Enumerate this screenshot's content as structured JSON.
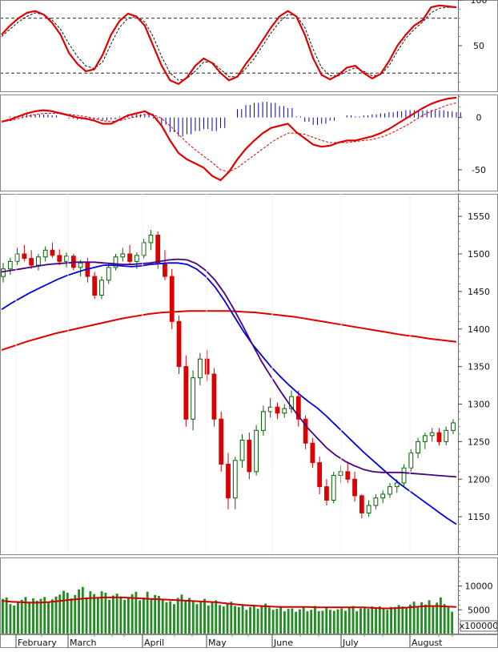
{
  "chart_data": [
    {
      "panel": "stochastic",
      "type": "line",
      "ylim": [
        0,
        100
      ],
      "yticks": [
        "100",
        "50"
      ],
      "ytick_values": [
        100,
        50
      ],
      "reference_lines": [
        80,
        20
      ],
      "series": [
        {
          "values": [
            62,
            72,
            80,
            86,
            88,
            84,
            75,
            62,
            42,
            30,
            22,
            24,
            40,
            62,
            77,
            85,
            82,
            72,
            50,
            28,
            12,
            8,
            15,
            28,
            36,
            31,
            20,
            12,
            16,
            30,
            42,
            56,
            70,
            82,
            88,
            82,
            62,
            36,
            18,
            13,
            18,
            26,
            28,
            20,
            14,
            19,
            33,
            50,
            62,
            72,
            78,
            92,
            94,
            93,
            92
          ],
          "color": "#e00000"
        },
        {
          "values": [
            60,
            68,
            76,
            82,
            86,
            84,
            78,
            68,
            52,
            38,
            28,
            25,
            32,
            52,
            70,
            80,
            82,
            76,
            60,
            38,
            20,
            12,
            14,
            22,
            32,
            32,
            24,
            16,
            16,
            25,
            36,
            50,
            64,
            76,
            84,
            83,
            70,
            46,
            26,
            17,
            17,
            22,
            26,
            22,
            17,
            18,
            28,
            44,
            58,
            68,
            76,
            86,
            91,
            92,
            92
          ],
          "color": "#111111"
        }
      ]
    },
    {
      "panel": "macd",
      "type": "line",
      "ylim": [
        -70,
        22
      ],
      "yticks": [
        "0",
        "-50"
      ],
      "ytick_values": [
        0,
        -50
      ],
      "series": [
        {
          "values": [
            -4,
            -2,
            1,
            4,
            6,
            7,
            6,
            4,
            2,
            0,
            -1,
            -3,
            -6,
            -6,
            -2,
            2,
            4,
            6,
            2,
            -8,
            -22,
            -34,
            -40,
            -44,
            -48,
            -56,
            -60,
            -52,
            -40,
            -30,
            -22,
            -15,
            -10,
            -8,
            -6,
            -14,
            -20,
            -26,
            -28,
            -27,
            -24,
            -22,
            -22,
            -20,
            -18,
            -15,
            -11,
            -6,
            -1,
            4,
            9,
            13,
            16,
            18,
            19
          ],
          "color": "#e00000"
        },
        {
          "values": [
            -4,
            -3,
            -1,
            1,
            3,
            4,
            4,
            4,
            3,
            2,
            1,
            -1,
            -3,
            -4,
            -3,
            -1,
            1,
            3,
            3,
            -1,
            -8,
            -16,
            -24,
            -31,
            -37,
            -43,
            -50,
            -52,
            -48,
            -42,
            -36,
            -30,
            -24,
            -19,
            -15,
            -15,
            -16,
            -19,
            -22,
            -24,
            -24,
            -24,
            -23,
            -22,
            -21,
            -19,
            -16,
            -12,
            -8,
            -3,
            2,
            6,
            9,
            12,
            14
          ],
          "color": "#e00000",
          "dash": "dashed"
        },
        {
          "type": "bar",
          "values": [
            0,
            1,
            2,
            3,
            3,
            3,
            2,
            0,
            -1,
            -2,
            -2,
            -2,
            -3,
            -2,
            1,
            3,
            3,
            3,
            -1,
            -7,
            -14,
            -18,
            -16,
            -13,
            -11,
            -13,
            -10,
            0,
            8,
            12,
            14,
            15,
            14,
            11,
            9,
            1,
            -4,
            -7,
            -6,
            -3,
            0,
            2,
            1,
            2,
            3,
            4,
            5,
            6,
            7,
            7,
            7,
            7,
            7,
            6,
            5
          ],
          "color": "#0000cc"
        }
      ]
    },
    {
      "panel": "price",
      "type": "candlestick",
      "ylim": [
        1100,
        1580
      ],
      "yticks": [
        "1550",
        "1500",
        "1450",
        "1400",
        "1350",
        "1300",
        "1250",
        "1200",
        "1150"
      ],
      "ytick_values": [
        1550,
        1500,
        1450,
        1400,
        1350,
        1300,
        1250,
        1200,
        1150
      ],
      "ohlc": [
        [
          1470,
          1488,
          1462,
          1480
        ],
        [
          1480,
          1495,
          1472,
          1490
        ],
        [
          1490,
          1508,
          1485,
          1500
        ],
        [
          1500,
          1512,
          1490,
          1494
        ],
        [
          1494,
          1505,
          1480,
          1485
        ],
        [
          1485,
          1500,
          1478,
          1496
        ],
        [
          1496,
          1510,
          1490,
          1505
        ],
        [
          1505,
          1515,
          1495,
          1498
        ],
        [
          1498,
          1506,
          1485,
          1490
        ],
        [
          1490,
          1502,
          1482,
          1497
        ],
        [
          1497,
          1500,
          1478,
          1482
        ],
        [
          1482,
          1492,
          1470,
          1488
        ],
        [
          1488,
          1495,
          1462,
          1470
        ],
        [
          1470,
          1476,
          1440,
          1445
        ],
        [
          1445,
          1470,
          1440,
          1465
        ],
        [
          1465,
          1488,
          1460,
          1482
        ],
        [
          1482,
          1500,
          1478,
          1496
        ],
        [
          1496,
          1508,
          1490,
          1500
        ],
        [
          1500,
          1512,
          1485,
          1490
        ],
        [
          1490,
          1502,
          1480,
          1498
        ],
        [
          1498,
          1520,
          1494,
          1515
        ],
        [
          1515,
          1532,
          1505,
          1525
        ],
        [
          1525,
          1530,
          1480,
          1488
        ],
        [
          1488,
          1505,
          1465,
          1470
        ],
        [
          1470,
          1480,
          1400,
          1410
        ],
        [
          1410,
          1418,
          1340,
          1350
        ],
        [
          1350,
          1365,
          1270,
          1280
        ],
        [
          1280,
          1345,
          1265,
          1335
        ],
        [
          1335,
          1368,
          1325,
          1360
        ],
        [
          1360,
          1372,
          1330,
          1340
        ],
        [
          1340,
          1348,
          1270,
          1280
        ],
        [
          1280,
          1290,
          1210,
          1220
        ],
        [
          1220,
          1235,
          1160,
          1175
        ],
        [
          1175,
          1230,
          1160,
          1225
        ],
        [
          1225,
          1260,
          1215,
          1252
        ],
        [
          1252,
          1262,
          1200,
          1210
        ],
        [
          1210,
          1272,
          1205,
          1265
        ],
        [
          1265,
          1298,
          1258,
          1290
        ],
        [
          1290,
          1308,
          1282,
          1296
        ],
        [
          1296,
          1302,
          1280,
          1288
        ],
        [
          1288,
          1300,
          1282,
          1294
        ],
        [
          1294,
          1318,
          1288,
          1310
        ],
        [
          1310,
          1318,
          1270,
          1280
        ],
        [
          1280,
          1285,
          1240,
          1248
        ],
        [
          1248,
          1255,
          1215,
          1222
        ],
        [
          1222,
          1230,
          1180,
          1190
        ],
        [
          1190,
          1200,
          1165,
          1172
        ],
        [
          1172,
          1210,
          1168,
          1205
        ],
        [
          1205,
          1218,
          1195,
          1210
        ],
        [
          1210,
          1222,
          1195,
          1200
        ],
        [
          1200,
          1210,
          1170,
          1178
        ],
        [
          1178,
          1180,
          1148,
          1155
        ],
        [
          1155,
          1172,
          1150,
          1165
        ],
        [
          1165,
          1180,
          1160,
          1175
        ],
        [
          1175,
          1185,
          1168,
          1180
        ],
        [
          1180,
          1195,
          1175,
          1190
        ],
        [
          1190,
          1200,
          1182,
          1195
        ],
        [
          1195,
          1220,
          1190,
          1215
        ],
        [
          1215,
          1240,
          1210,
          1235
        ],
        [
          1235,
          1255,
          1228,
          1250
        ],
        [
          1250,
          1262,
          1240,
          1258
        ],
        [
          1258,
          1268,
          1250,
          1262
        ],
        [
          1262,
          1268,
          1245,
          1250
        ],
        [
          1250,
          1270,
          1245,
          1265
        ],
        [
          1265,
          1280,
          1260,
          1275
        ]
      ],
      "moving_averages": [
        {
          "values": [
            1426,
            1434,
            1441,
            1448,
            1454,
            1460,
            1466,
            1471,
            1475,
            1479,
            1482,
            1485,
            1485,
            1484,
            1483,
            1484,
            1486,
            1487,
            1488,
            1488,
            1486,
            1480,
            1470,
            1456,
            1438,
            1418,
            1398,
            1380,
            1365,
            1350,
            1337,
            1325,
            1314,
            1304,
            1295,
            1284,
            1272,
            1260,
            1248,
            1236,
            1225,
            1214,
            1203,
            1193,
            1184,
            1175,
            1166,
            1157,
            1148,
            1140
          ],
          "color": "#0000dd"
        },
        {
          "values": [
            1476,
            1478,
            1480,
            1482,
            1484,
            1486,
            1487,
            1488,
            1489,
            1489,
            1489,
            1488,
            1487,
            1486,
            1486,
            1487,
            1488,
            1490,
            1492,
            1493,
            1492,
            1487,
            1478,
            1465,
            1448,
            1427,
            1404,
            1380,
            1357,
            1337,
            1318,
            1300,
            1284,
            1268,
            1255,
            1242,
            1232,
            1224,
            1218,
            1213,
            1210,
            1209,
            1209,
            1209,
            1208,
            1207,
            1206,
            1205,
            1204,
            1203
          ],
          "color": "#4b0082"
        },
        {
          "values": [
            1372,
            1378,
            1384,
            1389,
            1394,
            1398,
            1402,
            1406,
            1410,
            1414,
            1417,
            1420,
            1422,
            1423,
            1424,
            1424,
            1424,
            1424,
            1423,
            1422,
            1420,
            1418,
            1416,
            1413,
            1410,
            1407,
            1404,
            1401,
            1398,
            1395,
            1392,
            1390,
            1387,
            1385,
            1383
          ],
          "color": "#e00000"
        }
      ]
    },
    {
      "panel": "volume",
      "type": "bar",
      "ylim": [
        0,
        16000
      ],
      "yticks": [
        "10000",
        "5000"
      ],
      "ytick_values": [
        10000,
        5000
      ],
      "unit_label": "x100000",
      "values": [
        7300,
        7600,
        6200,
        5900,
        6800,
        7100,
        7700,
        6700,
        7400,
        6900,
        7300,
        7700,
        6600,
        7200,
        7800,
        8200,
        9000,
        8600,
        7400,
        8100,
        9300,
        9800,
        7600,
        8900,
        8300,
        7400,
        8900,
        8600,
        7100,
        8000,
        8400,
        7800,
        7100,
        7700,
        8300,
        8800,
        7000,
        7600,
        8800,
        7400,
        8100,
        7900,
        7300,
        6600,
        6800,
        6200,
        7500,
        8200,
        6800,
        7500,
        6900,
        6200,
        6700,
        7300,
        5900,
        6500,
        7000,
        6000,
        5700,
        6400,
        6700,
        5800,
        5600,
        6200,
        5000,
        5600,
        5900,
        5200,
        5900,
        6300,
        5500,
        5000,
        5200,
        5600,
        4700,
        5200,
        5300,
        4600,
        5100,
        5500,
        4700,
        5000,
        5800,
        4700,
        4800,
        5400,
        5000,
        4800,
        5100,
        5300,
        4800,
        5600,
        5800,
        4700,
        5300,
        5400,
        5200,
        5700,
        5500,
        5700,
        5300,
        5000,
        5600,
        5600,
        6000,
        5700,
        5400,
        6100,
        6700,
        5800,
        6600,
        6100,
        7000,
        5900,
        6500,
        7600,
        6200,
        5500,
        4600
      ],
      "moving_average": {
        "values": [
          6900,
          6700,
          6600,
          6500,
          6500,
          6600,
          6800,
          7000,
          7200,
          7400,
          7500,
          7600,
          7600,
          7600,
          7500,
          7400,
          7300,
          7200,
          7100,
          7000,
          6900,
          6800,
          6700,
          6600,
          6400,
          6200,
          6000,
          5900,
          5800,
          5700,
          5600,
          5600,
          5600,
          5600,
          5500,
          5500,
          5500,
          5500,
          5500,
          5500,
          5400,
          5300,
          5300,
          5400,
          5500,
          5700,
          5800,
          5800,
          5700,
          5600
        ],
        "color": "#cc0000"
      }
    }
  ],
  "x_axis": {
    "labels": [
      "February",
      "March",
      "April",
      "May",
      "June",
      "July",
      "August"
    ]
  }
}
